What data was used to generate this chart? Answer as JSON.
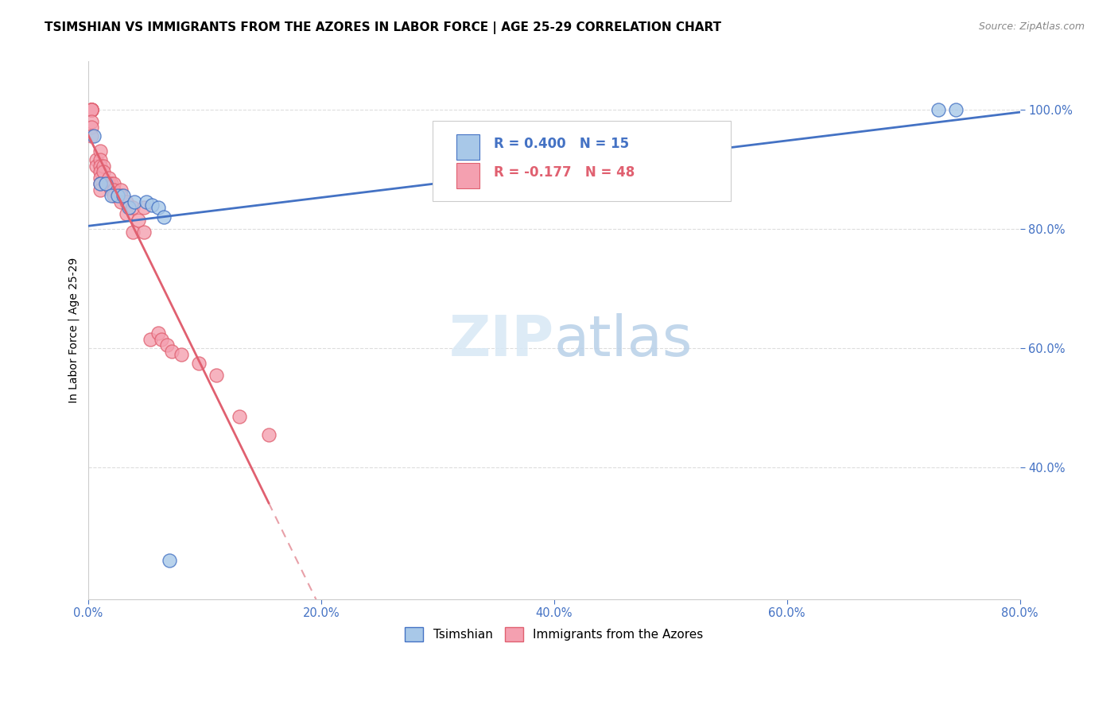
{
  "title": "TSIMSHIAN VS IMMIGRANTS FROM THE AZORES IN LABOR FORCE | AGE 25-29 CORRELATION CHART",
  "source": "Source: ZipAtlas.com",
  "ylabel_label": "In Labor Force | Age 25-29",
  "legend_label1": "Tsimshian",
  "legend_label2": "Immigrants from the Azores",
  "R1": 0.4,
  "N1": 15,
  "R2": -0.177,
  "N2": 48,
  "color_tsimshian": "#a8c8e8",
  "color_azores": "#f4a0b0",
  "color_line1": "#4472c4",
  "color_line2": "#e06070",
  "color_line2_dash": "#e8a0a8",
  "xlim": [
    0.0,
    0.8
  ],
  "ylim": [
    0.18,
    1.08
  ],
  "xticks": [
    0.0,
    0.2,
    0.4,
    0.6,
    0.8
  ],
  "yticks": [
    0.4,
    0.6,
    0.8,
    1.0
  ],
  "grid_color": "#dddddd",
  "background_color": "#ffffff",
  "tsimshian_x": [
    0.005,
    0.01,
    0.015,
    0.02,
    0.025,
    0.03,
    0.035,
    0.04,
    0.05,
    0.055,
    0.06,
    0.065,
    0.07,
    0.73,
    0.745
  ],
  "tsimshian_y": [
    0.955,
    0.875,
    0.875,
    0.855,
    0.855,
    0.855,
    0.835,
    0.845,
    0.845,
    0.84,
    0.835,
    0.82,
    0.245,
    1.0,
    1.0
  ],
  "azores_x": [
    0.003,
    0.003,
    0.003,
    0.003,
    0.003,
    0.003,
    0.003,
    0.003,
    0.003,
    0.007,
    0.007,
    0.01,
    0.01,
    0.01,
    0.01,
    0.01,
    0.01,
    0.01,
    0.013,
    0.013,
    0.015,
    0.018,
    0.018,
    0.02,
    0.02,
    0.022,
    0.022,
    0.022,
    0.028,
    0.028,
    0.028,
    0.033,
    0.033,
    0.038,
    0.038,
    0.043,
    0.048,
    0.048,
    0.053,
    0.06,
    0.063,
    0.068,
    0.072,
    0.08,
    0.095,
    0.11,
    0.13,
    0.155
  ],
  "azores_y": [
    1.0,
    1.0,
    1.0,
    1.0,
    1.0,
    1.0,
    0.98,
    0.97,
    0.955,
    0.915,
    0.905,
    0.93,
    0.915,
    0.905,
    0.895,
    0.885,
    0.875,
    0.865,
    0.905,
    0.895,
    0.875,
    0.885,
    0.875,
    0.875,
    0.865,
    0.875,
    0.865,
    0.855,
    0.865,
    0.855,
    0.845,
    0.845,
    0.825,
    0.835,
    0.795,
    0.815,
    0.835,
    0.795,
    0.615,
    0.625,
    0.615,
    0.605,
    0.595,
    0.59,
    0.575,
    0.555,
    0.485,
    0.455
  ],
  "title_fontsize": 11,
  "axis_label_fontsize": 10,
  "tick_fontsize": 10.5,
  "legend_fontsize": 12
}
